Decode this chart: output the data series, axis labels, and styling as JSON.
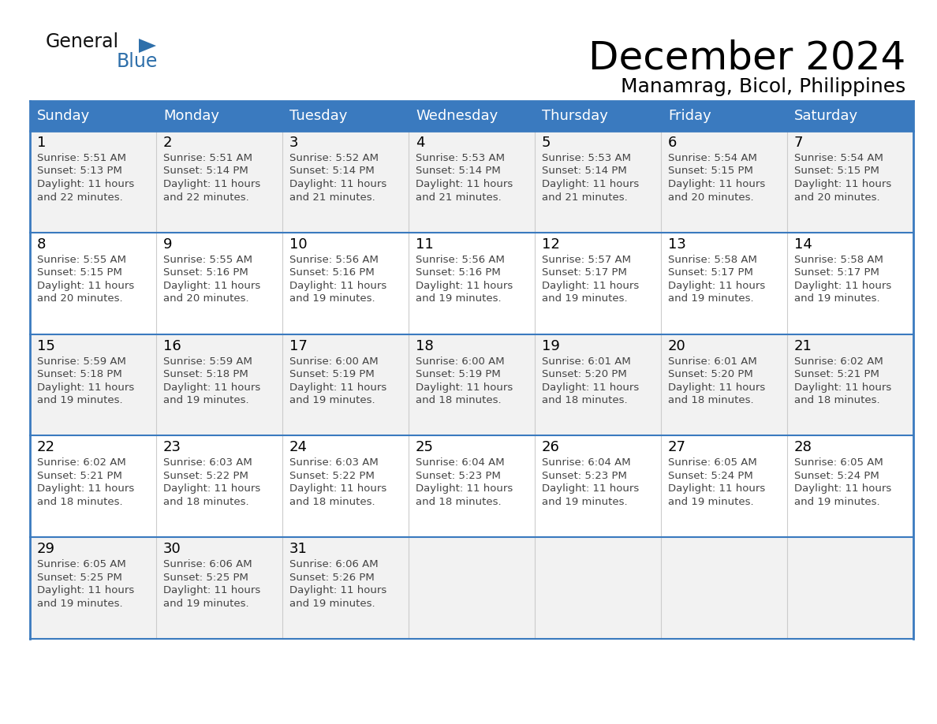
{
  "title": "December 2024",
  "subtitle": "Manamrag, Bicol, Philippines",
  "days_of_week": [
    "Sunday",
    "Monday",
    "Tuesday",
    "Wednesday",
    "Thursday",
    "Friday",
    "Saturday"
  ],
  "header_bg_color": "#3a7abf",
  "header_text_color": "#ffffff",
  "row_bg_even": "#f2f2f2",
  "row_bg_odd": "#ffffff",
  "row_separator_color": "#3a7abf",
  "col_separator_color": "#cccccc",
  "day_number_color": "#000000",
  "cell_text_color": "#444444",
  "title_color": "#000000",
  "subtitle_color": "#000000",
  "logo_general_color": "#111111",
  "logo_blue_color": "#2e6faa",
  "title_fontsize": 36,
  "subtitle_fontsize": 18,
  "header_fontsize": 13,
  "day_num_fontsize": 13,
  "cell_fontsize": 9.5,
  "calendar_data": [
    [
      {
        "day": 1,
        "sunrise": "5:51 AM",
        "sunset": "5:13 PM",
        "daylight_suffix": "22 minutes."
      },
      {
        "day": 2,
        "sunrise": "5:51 AM",
        "sunset": "5:14 PM",
        "daylight_suffix": "22 minutes."
      },
      {
        "day": 3,
        "sunrise": "5:52 AM",
        "sunset": "5:14 PM",
        "daylight_suffix": "21 minutes."
      },
      {
        "day": 4,
        "sunrise": "5:53 AM",
        "sunset": "5:14 PM",
        "daylight_suffix": "21 minutes."
      },
      {
        "day": 5,
        "sunrise": "5:53 AM",
        "sunset": "5:14 PM",
        "daylight_suffix": "21 minutes."
      },
      {
        "day": 6,
        "sunrise": "5:54 AM",
        "sunset": "5:15 PM",
        "daylight_suffix": "20 minutes."
      },
      {
        "day": 7,
        "sunrise": "5:54 AM",
        "sunset": "5:15 PM",
        "daylight_suffix": "20 minutes."
      }
    ],
    [
      {
        "day": 8,
        "sunrise": "5:55 AM",
        "sunset": "5:15 PM",
        "daylight_suffix": "20 minutes."
      },
      {
        "day": 9,
        "sunrise": "5:55 AM",
        "sunset": "5:16 PM",
        "daylight_suffix": "20 minutes."
      },
      {
        "day": 10,
        "sunrise": "5:56 AM",
        "sunset": "5:16 PM",
        "daylight_suffix": "19 minutes."
      },
      {
        "day": 11,
        "sunrise": "5:56 AM",
        "sunset": "5:16 PM",
        "daylight_suffix": "19 minutes."
      },
      {
        "day": 12,
        "sunrise": "5:57 AM",
        "sunset": "5:17 PM",
        "daylight_suffix": "19 minutes."
      },
      {
        "day": 13,
        "sunrise": "5:58 AM",
        "sunset": "5:17 PM",
        "daylight_suffix": "19 minutes."
      },
      {
        "day": 14,
        "sunrise": "5:58 AM",
        "sunset": "5:17 PM",
        "daylight_suffix": "19 minutes."
      }
    ],
    [
      {
        "day": 15,
        "sunrise": "5:59 AM",
        "sunset": "5:18 PM",
        "daylight_suffix": "19 minutes."
      },
      {
        "day": 16,
        "sunrise": "5:59 AM",
        "sunset": "5:18 PM",
        "daylight_suffix": "19 minutes."
      },
      {
        "day": 17,
        "sunrise": "6:00 AM",
        "sunset": "5:19 PM",
        "daylight_suffix": "19 minutes."
      },
      {
        "day": 18,
        "sunrise": "6:00 AM",
        "sunset": "5:19 PM",
        "daylight_suffix": "18 minutes."
      },
      {
        "day": 19,
        "sunrise": "6:01 AM",
        "sunset": "5:20 PM",
        "daylight_suffix": "18 minutes."
      },
      {
        "day": 20,
        "sunrise": "6:01 AM",
        "sunset": "5:20 PM",
        "daylight_suffix": "18 minutes."
      },
      {
        "day": 21,
        "sunrise": "6:02 AM",
        "sunset": "5:21 PM",
        "daylight_suffix": "18 minutes."
      }
    ],
    [
      {
        "day": 22,
        "sunrise": "6:02 AM",
        "sunset": "5:21 PM",
        "daylight_suffix": "18 minutes."
      },
      {
        "day": 23,
        "sunrise": "6:03 AM",
        "sunset": "5:22 PM",
        "daylight_suffix": "18 minutes."
      },
      {
        "day": 24,
        "sunrise": "6:03 AM",
        "sunset": "5:22 PM",
        "daylight_suffix": "18 minutes."
      },
      {
        "day": 25,
        "sunrise": "6:04 AM",
        "sunset": "5:23 PM",
        "daylight_suffix": "18 minutes."
      },
      {
        "day": 26,
        "sunrise": "6:04 AM",
        "sunset": "5:23 PM",
        "daylight_suffix": "19 minutes."
      },
      {
        "day": 27,
        "sunrise": "6:05 AM",
        "sunset": "5:24 PM",
        "daylight_suffix": "19 minutes."
      },
      {
        "day": 28,
        "sunrise": "6:05 AM",
        "sunset": "5:24 PM",
        "daylight_suffix": "19 minutes."
      }
    ],
    [
      {
        "day": 29,
        "sunrise": "6:05 AM",
        "sunset": "5:25 PM",
        "daylight_suffix": "19 minutes."
      },
      {
        "day": 30,
        "sunrise": "6:06 AM",
        "sunset": "5:25 PM",
        "daylight_suffix": "19 minutes."
      },
      {
        "day": 31,
        "sunrise": "6:06 AM",
        "sunset": "5:26 PM",
        "daylight_suffix": "19 minutes."
      },
      null,
      null,
      null,
      null
    ]
  ]
}
